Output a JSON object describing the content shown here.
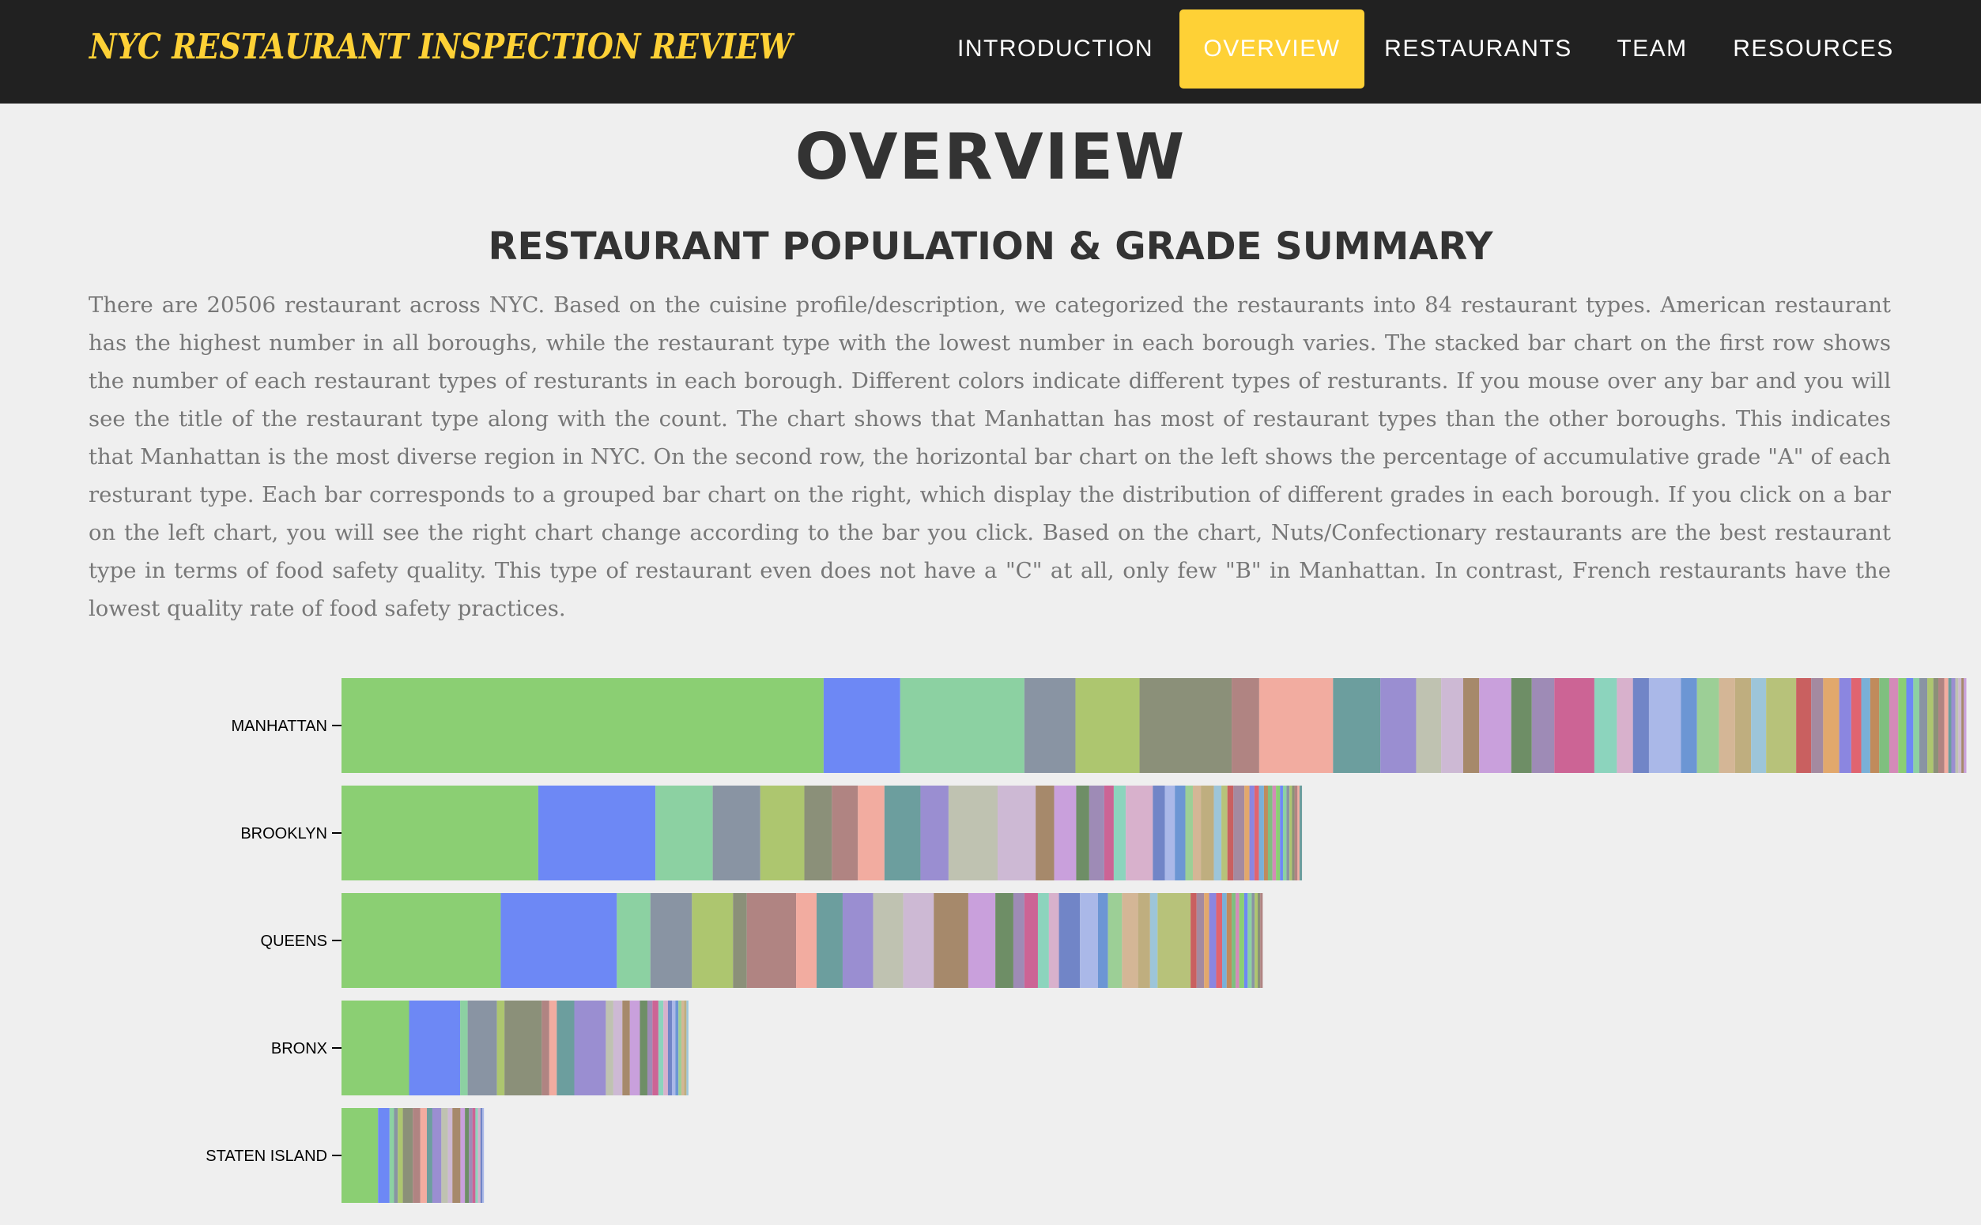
{
  "navbar": {
    "brand": "NYC RESTAURANT INSPECTION REVIEW",
    "items": [
      {
        "label": "INTRODUCTION",
        "active": false
      },
      {
        "label": "OVERVIEW",
        "active": true
      },
      {
        "label": "RESTAURANTS",
        "active": false
      },
      {
        "label": "TEAM",
        "active": false
      },
      {
        "label": "RESOURCES",
        "active": false
      }
    ],
    "colors": {
      "background": "#212121",
      "accent": "#fed136",
      "text": "#ffffff"
    }
  },
  "main": {
    "title": "OVERVIEW",
    "subtitle": "RESTAURANT POPULATION & GRADE SUMMARY",
    "paragraph": "There are 20506 restaurant across NYC. Based on the cuisine profile/description, we categorized the restaurants into 84 restaurant types. American restaurant has the highest number in all boroughs, while the restaurant type with the lowest number in each borough varies. The stacked bar chart on the first row shows the number of each restaurant types of resturants in each borough. Different colors indicate different types of resturants. If you mouse over any bar and you will see the title of the restaurant type along with the count. The chart shows that Manhattan has most of restaurant types than the other boroughs. This indicates that Manhattan is the most diverse region in NYC. On the second row, the horizontal bar chart on the left shows the percentage of accumulative grade \"A\" of each resturant type. Each bar corresponds to a grouped bar chart on the right, which display the distribution of different grades in each borough. If you click on a bar on the left chart, you will see the right chart change according to the bar you click. Based on the chart, Nuts/Confectionary restaurants are the best restaurant type in terms of food safety quality. This type of restaurant even does not have a \"C\" at all, only few \"B\" in Manhattan. In contrast, French restaurants have the lowest quality rate of food safety practices."
  },
  "chart_data": {
    "type": "bar",
    "orientation": "horizontal",
    "stacked": true,
    "categories": [
      "MANHATTAN",
      "BROOKLYN",
      "QUEENS",
      "BRONX",
      "STATEN ISLAND"
    ],
    "segments": {
      "MANHATTAN": [
        1926,
        306,
        496,
        204,
        256,
        368,
        110,
        295,
        189,
        143,
        100,
        88,
        64,
        128,
        82,
        90,
        160,
        90,
        64,
        64,
        128,
        64,
        88,
        64,
        64,
        60,
        120,
        60,
        48,
        64,
        48,
        40,
        36,
        36,
        40,
        36,
        32,
        28,
        24,
        32,
        24,
        20,
        24,
        16,
        12,
        16,
        12,
        12,
        10,
        10
      ],
      "BROOKLYN": [
        786,
        468,
        229,
        190,
        176,
        110,
        104,
        106,
        144,
        112,
        196,
        152,
        74,
        88,
        52,
        60,
        38,
        48,
        108,
        48,
        40,
        42,
        30,
        32,
        52,
        30,
        24,
        24,
        44,
        20,
        20,
        18,
        20,
        16,
        18,
        14,
        16,
        12,
        14,
        12,
        10,
        10,
        12,
        8,
        10
      ],
      "QUEENS": [
        636,
        464,
        134,
        166,
        164,
        55,
        197,
        82,
        104,
        122,
        120,
        122,
        138,
        108,
        72,
        44,
        54,
        44,
        40,
        84,
        72,
        40,
        56,
        64,
        48,
        30,
        132,
        24,
        30,
        20,
        28,
        24,
        18,
        20,
        16,
        14,
        20,
        14,
        16,
        12,
        12,
        10,
        10
      ],
      "BRONX": [
        270,
        204,
        30,
        117,
        30,
        149,
        30,
        30,
        70,
        126,
        30,
        36,
        30,
        40,
        30,
        20,
        24,
        20,
        18,
        16,
        14,
        12,
        12,
        10,
        10,
        8
      ],
      "STATEN ISLAND": [
        146,
        46,
        18,
        15,
        20,
        40,
        30,
        26,
        22,
        36,
        26,
        18,
        32,
        18,
        16,
        14,
        12,
        10,
        10,
        8,
        6
      ]
    },
    "palette": [
      "#8bcf73",
      "#6d88f5",
      "#8cd1a2",
      "#8994a3",
      "#adc66f",
      "#8b9079",
      "#b08482",
      "#f2aca0",
      "#6c9e9e",
      "#9a8ed1",
      "#bfc2b1",
      "#cdb9d4",
      "#a6896b",
      "#c9a0dc",
      "#6e8e66",
      "#9e8bb6",
      "#cc6495",
      "#8cd4bd",
      "#d8b1cc",
      "#7185c7",
      "#aab8e8",
      "#6c96d4",
      "#9ccf96",
      "#d4b696",
      "#bfae7f",
      "#9dc5d9",
      "#b7c27a",
      "#c96060",
      "#a48aa0",
      "#e2a86c",
      "#8b86e0",
      "#e06470",
      "#79b0d8",
      "#c08b5c",
      "#7fbf7f",
      "#d48ab8"
    ],
    "xlim": [
      0,
      6000
    ],
    "grid": false,
    "legend": "none",
    "title": "",
    "xlabel": "",
    "ylabel": ""
  }
}
